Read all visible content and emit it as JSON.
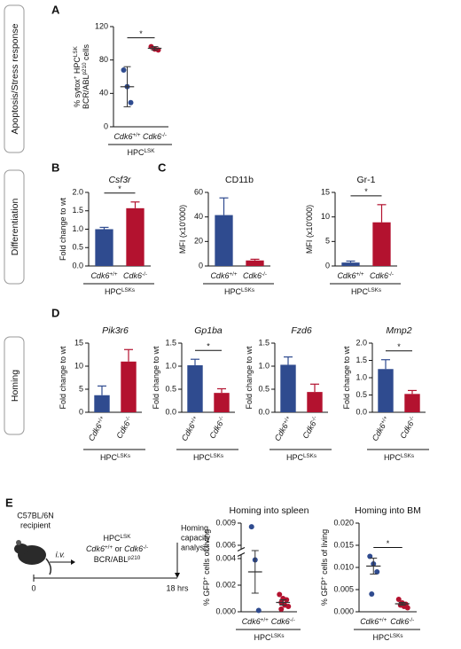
{
  "panels": [
    "A",
    "B",
    "C",
    "D",
    "E"
  ],
  "sections": [
    "Apoptosis/Stress response",
    "Differentiation",
    "Homing"
  ],
  "schematic": {
    "mouse_strain": "C57BL/6N",
    "mouse_role": "recipient",
    "route": "i.v.",
    "cells": "HPCLSK",
    "genotypes": "Cdk6+/+ or Cdk6-/-",
    "oncogene": "BCR/ABLp210",
    "readout": [
      "Homing",
      "capacity",
      "analysis"
    ],
    "timeline": [
      "0",
      "18 hrs"
    ]
  },
  "chart_data": [
    {
      "type": "dot",
      "ylabel": [
        "% sytox+ HPCLSK",
        "BCR/ABLp210 cells"
      ],
      "categories": [
        "Cdk6+/+",
        "Cdk6-/-"
      ],
      "colors": [
        "#2f4b8f",
        "#b3122f"
      ],
      "points": [
        [
          68,
          48,
          29
        ],
        [
          96,
          93,
          92
        ]
      ],
      "values": [
        48,
        94
      ],
      "errors": [
        24,
        2
      ],
      "ylim": [
        0,
        120
      ],
      "yticks": [
        0,
        40,
        80,
        120
      ],
      "significance": "*",
      "group_label": "HPCLSK"
    },
    {
      "type": "bar",
      "title": "Csf3r",
      "title_style": "italic",
      "ylabel": "Fold change to wt",
      "categories": [
        "Cdk6+/+",
        "Cdk6-/-"
      ],
      "colors": [
        "#2f4b8f",
        "#b3122f"
      ],
      "values": [
        1.0,
        1.57
      ],
      "errors": [
        0.05,
        0.17
      ],
      "ylim": [
        0,
        2
      ],
      "yticks": [
        {
          "value": 0,
          "label": "0.0"
        },
        0.5,
        {
          "value": 1,
          "label": "1.0"
        },
        1.5,
        {
          "value": 2,
          "label": "2.0"
        }
      ],
      "significance": "*",
      "group_label": "HPCLSKs"
    },
    {
      "type": "bar",
      "title": "CD11b",
      "title_style": "normal",
      "ylabel": "MFI (x10'000)",
      "categories": [
        "Cdk6+/+",
        "Cdk6-/-"
      ],
      "colors": [
        "#2f4b8f",
        "#b3122f"
      ],
      "values": [
        41.5,
        4.5
      ],
      "errors": [
        14,
        1
      ],
      "ylim": [
        0,
        60
      ],
      "yticks": [
        0,
        20,
        40,
        60
      ],
      "group_label": "HPCLSKs"
    },
    {
      "type": "bar",
      "title": "Gr-1",
      "title_style": "normal",
      "ylabel": "MFI (x10'000)",
      "categories": [
        "Cdk6+/+",
        "Cdk6-/-"
      ],
      "colors": [
        "#2f4b8f",
        "#b3122f"
      ],
      "values": [
        0.7,
        8.9
      ],
      "errors": [
        0.3,
        3.6
      ],
      "ylim": [
        0,
        15
      ],
      "yticks": [
        0,
        5,
        10,
        15
      ],
      "significance": "*",
      "group_label": "HPCLSKs"
    },
    {
      "type": "bar",
      "title": "Pik3r6",
      "title_style": "italic",
      "ylabel": "Fold change to wt",
      "categories": [
        "Cdk6+/+",
        "Cdk6-/-"
      ],
      "colors": [
        "#2f4b8f",
        "#b3122f"
      ],
      "rotate_labels": true,
      "values": [
        3.7,
        11.0
      ],
      "errors": [
        2.0,
        2.6
      ],
      "ylim": [
        0,
        15
      ],
      "yticks": [
        0,
        5,
        10,
        15
      ],
      "group_label": "HPCLSKs"
    },
    {
      "type": "bar",
      "title": "Gp1ba",
      "title_style": "italic",
      "ylabel": "Fold change to wt",
      "categories": [
        "Cdk6+/+",
        "Cdk6-/-"
      ],
      "colors": [
        "#2f4b8f",
        "#b3122f"
      ],
      "rotate_labels": true,
      "values": [
        1.02,
        0.42
      ],
      "errors": [
        0.13,
        0.09
      ],
      "ylim": [
        0,
        1.5
      ],
      "yticks": [
        {
          "value": 0,
          "label": "0.0"
        },
        0.5,
        {
          "value": 1,
          "label": "1.0"
        },
        1.5
      ],
      "significance": "*",
      "group_label": "HPCLSKs"
    },
    {
      "type": "bar",
      "title": "Fzd6",
      "title_style": "italic",
      "ylabel": "Fold change to wt",
      "categories": [
        "Cdk6+/+",
        "Cdk6-/-"
      ],
      "colors": [
        "#2f4b8f",
        "#b3122f"
      ],
      "rotate_labels": true,
      "values": [
        1.03,
        0.44
      ],
      "errors": [
        0.17,
        0.17
      ],
      "ylim": [
        0,
        1.5
      ],
      "yticks": [
        {
          "value": 0,
          "label": "0.0"
        },
        0.5,
        {
          "value": 1,
          "label": "1.0"
        },
        1.5
      ],
      "group_label": "HPCLSKs"
    },
    {
      "type": "bar",
      "title": "Mmp2",
      "title_style": "italic",
      "ylabel": "Fold change to wt",
      "categories": [
        "Cdk6+/+",
        "Cdk6-/-"
      ],
      "colors": [
        "#2f4b8f",
        "#b3122f"
      ],
      "rotate_labels": true,
      "values": [
        1.25,
        0.53
      ],
      "errors": [
        0.27,
        0.1
      ],
      "ylim": [
        0,
        2
      ],
      "yticks": [
        {
          "value": 0,
          "label": "0.0"
        },
        0.5,
        {
          "value": 1,
          "label": "1.0"
        },
        1.5,
        {
          "value": 2,
          "label": "2.0"
        }
      ],
      "significance": "*",
      "group_label": "HPCLSKs"
    },
    {
      "type": "dot",
      "title": "Homing into spleen",
      "title_style": "normal",
      "ylabel": "% GFP+ cells of living",
      "categories": [
        "Cdk6+/+",
        "Cdk6-/-"
      ],
      "colors": [
        "#2f4b8f",
        "#b3122f"
      ],
      "points": [
        [
          0.0085,
          0.0039,
          0.0001
        ],
        [
          0.0013,
          0.001,
          0.0009,
          0.0007,
          0.0005,
          0.0004,
          0.0002
        ]
      ],
      "values": [
        0.003,
        0.0007
      ],
      "errors": [
        0.0016,
        0.0002
      ],
      "ylim": [
        0,
        0.004
      ],
      "ylim_upper": [
        0.006,
        0.009
      ],
      "yticks": [
        {
          "value": 0,
          "label": "0.000"
        },
        0.002,
        0.004,
        0.006,
        0.009
      ],
      "group_label": "HPCLSKs"
    },
    {
      "type": "dot",
      "title": "Homing into BM",
      "title_style": "normal",
      "ylabel": "% GFP+ cells of living",
      "categories": [
        "Cdk6+/+",
        "Cdk6-/-"
      ],
      "colors": [
        "#2f4b8f",
        "#b3122f"
      ],
      "points": [
        [
          0.0125,
          0.0108,
          0.009,
          0.004
        ],
        [
          0.0028,
          0.002,
          0.0017,
          0.0015,
          0.0012,
          0.0009
        ]
      ],
      "values": [
        0.0103,
        0.0018
      ],
      "errors": [
        0.0018,
        0.0003
      ],
      "ylim": [
        0,
        0.02
      ],
      "yticks": [
        {
          "value": 0,
          "label": "0.000"
        },
        0.005,
        {
          "value": 0.01,
          "label": "0.010"
        },
        0.015,
        {
          "value": 0.02,
          "label": "0.020"
        }
      ],
      "significance": "*",
      "group_label": "HPCLSKs"
    }
  ]
}
